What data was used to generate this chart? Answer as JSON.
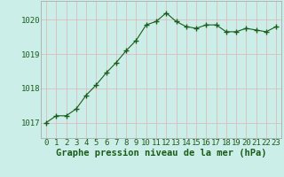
{
  "x": [
    0,
    1,
    2,
    3,
    4,
    5,
    6,
    7,
    8,
    9,
    10,
    11,
    12,
    13,
    14,
    15,
    16,
    17,
    18,
    19,
    20,
    21,
    22,
    23
  ],
  "y": [
    1017.0,
    1017.2,
    1017.2,
    1017.4,
    1017.8,
    1018.1,
    1018.45,
    1018.75,
    1019.1,
    1019.4,
    1019.85,
    1019.95,
    1020.2,
    1019.95,
    1019.8,
    1019.75,
    1019.85,
    1019.85,
    1019.65,
    1019.65,
    1019.75,
    1019.7,
    1019.65,
    1019.8
  ],
  "line_color": "#1a5c1a",
  "marker": "+",
  "marker_size": 4,
  "bg_color": "#cceee8",
  "grid_color": "#ddbbbb",
  "axis_line_color": "#aaaaaa",
  "xlabel": "Graphe pression niveau de la mer (hPa)",
  "xlabel_color": "#1a5c1a",
  "xlabel_fontsize": 7.5,
  "tick_color": "#1a5c1a",
  "tick_fontsize": 6.5,
  "ylim": [
    1016.55,
    1020.55
  ],
  "yticks": [
    1017,
    1018,
    1019,
    1020
  ],
  "xlim": [
    -0.5,
    23.5
  ],
  "xticks": [
    0,
    1,
    2,
    3,
    4,
    5,
    6,
    7,
    8,
    9,
    10,
    11,
    12,
    13,
    14,
    15,
    16,
    17,
    18,
    19,
    20,
    21,
    22,
    23
  ]
}
